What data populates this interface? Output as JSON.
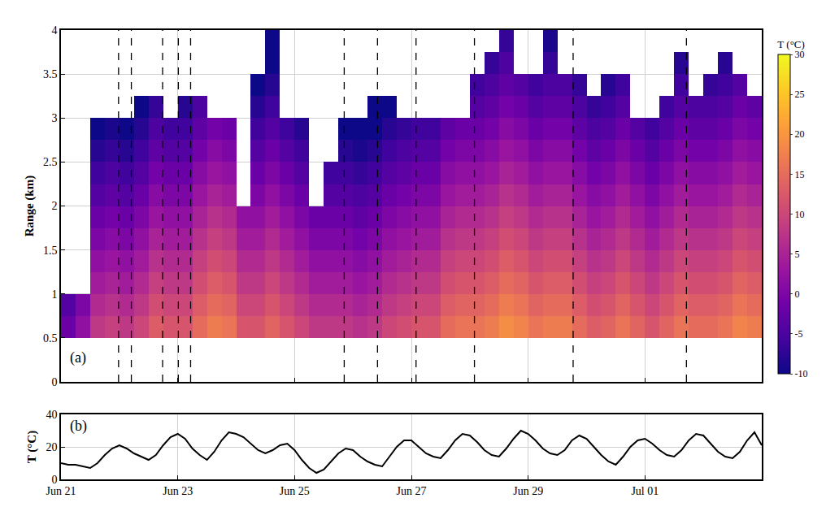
{
  "chart_data": [
    {
      "type": "heatmap",
      "ylabel": "Range (km)",
      "label": "(a)",
      "xlim": [
        0,
        12
      ],
      "xticks": [
        0,
        2,
        4,
        6,
        8,
        10
      ],
      "ylim": [
        0,
        4
      ],
      "yticks": [
        0,
        0.5,
        1,
        1.5,
        2,
        2.5,
        3,
        3.5,
        4
      ],
      "grid": true,
      "tick_labels": "y",
      "colorbar": {
        "title": "T (°C)",
        "range": [
          -10,
          30
        ],
        "ticks": [
          -10,
          -5,
          0,
          5,
          10,
          15,
          20,
          25,
          30
        ]
      },
      "dashed_lines": {
        "x": [
          0.986,
          1.205,
          1.74,
          2.01,
          2.22,
          4.85,
          5.42,
          6.08,
          7.08,
          8.77,
          10.71
        ],
        "line_style": "dashed",
        "color": "#000000"
      },
      "x": [
        0.125,
        0.375,
        0.625,
        0.875,
        1.125,
        1.375,
        1.625,
        1.875,
        2.125,
        2.375,
        2.625,
        2.875,
        3.125,
        3.375,
        3.625,
        3.875,
        4.125,
        4.375,
        4.625,
        4.875,
        5.125,
        5.375,
        5.625,
        5.875,
        6.125,
        6.375,
        6.625,
        6.875,
        7.125,
        7.375,
        7.625,
        7.875,
        8.125,
        8.375,
        8.625,
        8.875,
        9.125,
        9.375,
        9.625,
        9.875,
        10.125,
        10.375,
        10.625,
        10.875,
        11.125,
        11.375,
        11.625,
        11.875
      ],
      "y": [
        0.625,
        0.875,
        1.125,
        1.375,
        1.625,
        1.875,
        2.125,
        2.375,
        2.625,
        2.875,
        3.125,
        3.375,
        3.625,
        3.875
      ],
      "z": [
        [
          -2,
          2,
          8,
          9,
          8,
          10,
          13,
          12,
          12,
          15,
          17,
          16,
          12,
          12,
          14,
          12,
          10,
          8,
          8,
          8,
          7,
          8,
          10,
          11,
          12,
          12,
          15,
          16,
          16,
          17,
          19,
          18,
          16,
          17,
          17,
          15,
          13,
          14,
          16,
          14,
          12,
          14,
          16,
          15,
          15,
          16,
          18,
          17
        ],
        [
          -4,
          0,
          6,
          7,
          6,
          8,
          11,
          10,
          10,
          13,
          15,
          14,
          10,
          10,
          12,
          10,
          8,
          6,
          6,
          6,
          5,
          6,
          8,
          9,
          10,
          10,
          13,
          14,
          14,
          15,
          17,
          16,
          14,
          15,
          15,
          13,
          11,
          12,
          14,
          12,
          10,
          12,
          14,
          13,
          13,
          14,
          16,
          15
        ],
        [
          null,
          null,
          4,
          5,
          4,
          6,
          9,
          8,
          8,
          11,
          13,
          12,
          8,
          8,
          10,
          8,
          6,
          4,
          4,
          4,
          3,
          4,
          6,
          7,
          8,
          8,
          11,
          12,
          12,
          13,
          15,
          14,
          12,
          13,
          13,
          11,
          9,
          10,
          12,
          10,
          8,
          10,
          12,
          11,
          11,
          12,
          14,
          13
        ],
        [
          null,
          null,
          2,
          3,
          2,
          4,
          7,
          6,
          6,
          9,
          11,
          10,
          6,
          6,
          8,
          6,
          4,
          2,
          2,
          2,
          1,
          2,
          4,
          5,
          6,
          6,
          9,
          10,
          10,
          11,
          13,
          12,
          10,
          11,
          11,
          9,
          7,
          8,
          10,
          8,
          6,
          8,
          10,
          9,
          9,
          10,
          12,
          11
        ],
        [
          null,
          null,
          0,
          1,
          0,
          2,
          5,
          4,
          4,
          7,
          9,
          8,
          4,
          4,
          6,
          4,
          2,
          0,
          0,
          0,
          -1,
          0,
          2,
          3,
          4,
          4,
          7,
          8,
          8,
          9,
          11,
          10,
          8,
          9,
          9,
          7,
          5,
          6,
          8,
          6,
          4,
          6,
          8,
          7,
          7,
          8,
          10,
          9
        ],
        [
          null,
          null,
          -2,
          -1,
          -2,
          0,
          3,
          2,
          2,
          5,
          7,
          6,
          2,
          2,
          4,
          2,
          0,
          -2,
          -2,
          -2,
          -3,
          -2,
          0,
          1,
          2,
          2,
          5,
          6,
          6,
          7,
          9,
          8,
          6,
          7,
          7,
          5,
          3,
          4,
          6,
          4,
          2,
          4,
          6,
          5,
          5,
          6,
          8,
          7
        ],
        [
          null,
          null,
          -4,
          -3,
          -4,
          -2,
          1,
          0,
          0,
          3,
          5,
          4,
          null,
          0,
          2,
          0,
          -2,
          null,
          -4,
          -4,
          -5,
          -4,
          -2,
          -1,
          0,
          0,
          3,
          4,
          4,
          5,
          7,
          6,
          4,
          5,
          5,
          3,
          1,
          2,
          4,
          2,
          0,
          2,
          4,
          3,
          3,
          4,
          6,
          5
        ],
        [
          null,
          null,
          -6,
          -5,
          -6,
          -4,
          -1,
          -2,
          -2,
          1,
          3,
          2,
          null,
          -2,
          0,
          -2,
          -4,
          null,
          -6,
          -6,
          -7,
          -6,
          -4,
          -3,
          -2,
          -2,
          1,
          2,
          2,
          3,
          5,
          4,
          2,
          3,
          3,
          1,
          -1,
          0,
          2,
          0,
          -2,
          0,
          2,
          1,
          1,
          2,
          4,
          3
        ],
        [
          null,
          null,
          -8,
          -7,
          -8,
          -6,
          -3,
          -4,
          -4,
          -1,
          1,
          0,
          null,
          -4,
          -2,
          -4,
          -6,
          null,
          null,
          -8,
          -9,
          -8,
          -6,
          -5,
          -4,
          -4,
          -1,
          0,
          0,
          1,
          3,
          2,
          0,
          1,
          1,
          -1,
          -3,
          -2,
          0,
          -2,
          -4,
          -2,
          0,
          -1,
          -1,
          0,
          2,
          1
        ],
        [
          null,
          null,
          -10,
          -9,
          -10,
          -8,
          -5,
          -6,
          -6,
          -3,
          -1,
          -2,
          null,
          -6,
          -4,
          -6,
          -8,
          null,
          null,
          -10,
          -11,
          -10,
          -8,
          -7,
          -6,
          -6,
          -3,
          -2,
          -2,
          -1,
          1,
          0,
          -2,
          -1,
          -1,
          -3,
          -5,
          -4,
          -2,
          -4,
          -6,
          -4,
          -2,
          -3,
          -3,
          -2,
          0,
          -1
        ],
        [
          null,
          null,
          null,
          null,
          null,
          -10,
          -7,
          null,
          -8,
          -5,
          null,
          null,
          null,
          -8,
          -6,
          null,
          null,
          null,
          null,
          null,
          null,
          -12,
          -10,
          null,
          null,
          null,
          null,
          null,
          -4,
          -3,
          -1,
          -2,
          -4,
          -3,
          -3,
          -5,
          -7,
          -6,
          -4,
          null,
          null,
          -6,
          -4,
          -5,
          -5,
          -4,
          -2,
          -3
        ],
        [
          null,
          null,
          null,
          null,
          null,
          null,
          null,
          null,
          null,
          null,
          null,
          null,
          null,
          -10,
          -8,
          null,
          null,
          null,
          null,
          null,
          null,
          null,
          null,
          null,
          null,
          null,
          null,
          null,
          -6,
          -5,
          -3,
          -4,
          -6,
          -5,
          -5,
          -7,
          null,
          -8,
          -6,
          null,
          null,
          null,
          -6,
          null,
          -7,
          -6,
          -4,
          null
        ],
        [
          null,
          null,
          null,
          null,
          null,
          null,
          null,
          null,
          null,
          null,
          null,
          null,
          null,
          null,
          -10,
          null,
          null,
          null,
          null,
          null,
          null,
          null,
          null,
          null,
          null,
          null,
          null,
          null,
          null,
          -7,
          -5,
          null,
          null,
          -7,
          null,
          null,
          null,
          null,
          null,
          null,
          null,
          null,
          -8,
          null,
          null,
          -8,
          null,
          null
        ],
        [
          null,
          null,
          null,
          null,
          null,
          null,
          null,
          null,
          null,
          null,
          null,
          null,
          null,
          null,
          -12,
          null,
          null,
          null,
          null,
          null,
          null,
          null,
          null,
          null,
          null,
          null,
          null,
          null,
          null,
          null,
          -7,
          null,
          null,
          -9,
          null,
          null,
          null,
          null,
          null,
          null,
          null,
          null,
          null,
          null,
          null,
          null,
          null,
          null
        ]
      ]
    },
    {
      "type": "line",
      "ylabel": "T (°C)",
      "label": "(b)",
      "color": "#000000",
      "grid": true,
      "xlim": [
        0,
        12
      ],
      "xticks": [
        {
          "value": 0,
          "label": "Jun 21"
        },
        {
          "value": 2,
          "label": "Jun 23"
        },
        {
          "value": 4,
          "label": "Jun 25"
        },
        {
          "value": 6,
          "label": "Jun 27"
        },
        {
          "value": 8,
          "label": "Jun 29"
        },
        {
          "value": 10,
          "label": "Jul 01"
        }
      ],
      "ylim": [
        0,
        40
      ],
      "yticks": [
        0,
        20,
        40
      ],
      "x": [
        0,
        0.125,
        0.25,
        0.375,
        0.5,
        0.625,
        0.75,
        0.875,
        1,
        1.125,
        1.25,
        1.375,
        1.5,
        1.625,
        1.75,
        1.875,
        2,
        2.125,
        2.25,
        2.375,
        2.5,
        2.625,
        2.75,
        2.875,
        3,
        3.125,
        3.25,
        3.375,
        3.5,
        3.625,
        3.75,
        3.875,
        4,
        4.125,
        4.25,
        4.375,
        4.5,
        4.625,
        4.75,
        4.875,
        5,
        5.125,
        5.25,
        5.375,
        5.5,
        5.625,
        5.75,
        5.875,
        6,
        6.125,
        6.25,
        6.375,
        6.5,
        6.625,
        6.75,
        6.875,
        7,
        7.125,
        7.25,
        7.375,
        7.5,
        7.625,
        7.75,
        7.875,
        8,
        8.125,
        8.25,
        8.375,
        8.5,
        8.625,
        8.75,
        8.875,
        9,
        9.125,
        9.25,
        9.375,
        9.5,
        9.625,
        9.75,
        9.875,
        10,
        10.125,
        10.25,
        10.375,
        10.5,
        10.625,
        10.75,
        10.875,
        11,
        11.125,
        11.25,
        11.375,
        11.5,
        11.625,
        11.75,
        11.875,
        12
      ],
      "values": [
        10,
        9,
        9,
        8,
        7,
        10,
        15,
        19,
        21,
        19,
        16,
        14,
        12,
        15,
        21,
        26,
        28,
        25,
        19,
        15,
        12,
        17,
        24,
        29,
        28,
        26,
        22,
        18,
        16,
        18,
        21,
        22,
        18,
        12,
        7,
        4,
        6,
        11,
        16,
        19,
        18,
        14,
        11,
        9,
        8,
        14,
        20,
        24,
        24,
        20,
        16,
        14,
        13,
        18,
        24,
        28,
        27,
        23,
        18,
        15,
        14,
        19,
        25,
        30,
        28,
        24,
        19,
        16,
        15,
        18,
        24,
        27,
        25,
        20,
        15,
        11,
        9,
        14,
        20,
        24,
        25,
        22,
        18,
        15,
        14,
        18,
        24,
        28,
        27,
        22,
        17,
        14,
        13,
        17,
        24,
        29,
        21
      ]
    }
  ]
}
